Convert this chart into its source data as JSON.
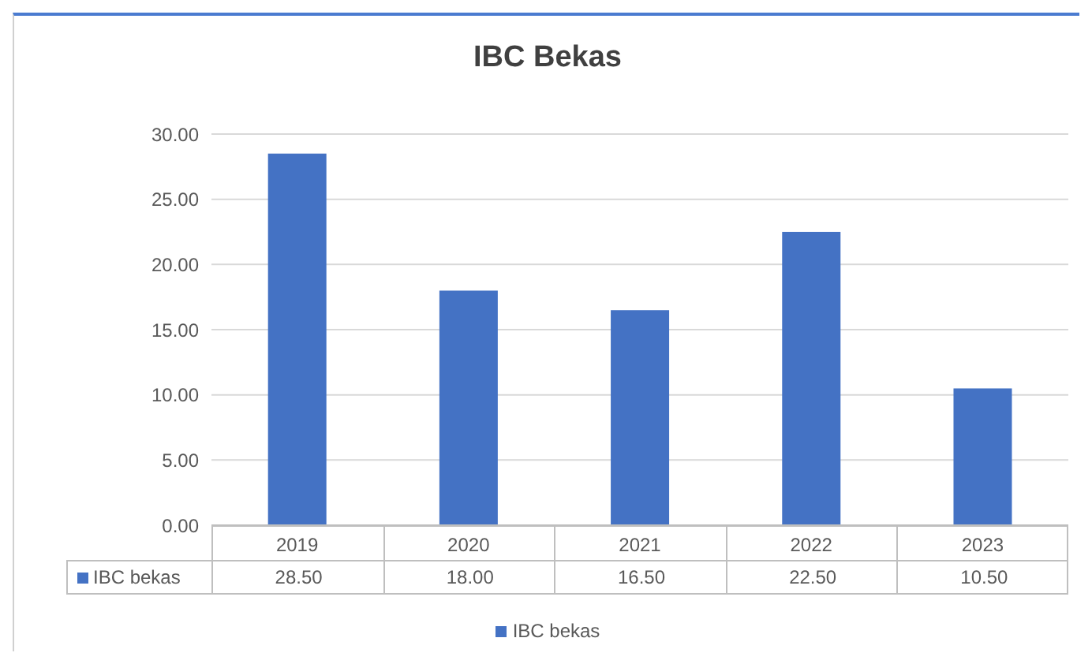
{
  "chart_data": {
    "type": "bar",
    "title": "IBC Bekas",
    "categories": [
      "2019",
      "2020",
      "2021",
      "2022",
      "2023"
    ],
    "series": [
      {
        "name": "IBC bekas",
        "color": "#4472c4",
        "values": [
          28.5,
          18,
          16.5,
          22.5,
          10.5
        ],
        "value_labels": [
          "28.50",
          "18.00",
          "16.50",
          "22.50",
          "10.50"
        ]
      }
    ],
    "ylim": [
      0,
      30
    ],
    "yticks": [
      {
        "value": 0,
        "label": "0.00"
      },
      {
        "value": 5,
        "label": "5.00"
      },
      {
        "value": 10,
        "label": "10.00"
      },
      {
        "value": 15,
        "label": "15.00"
      },
      {
        "value": 20,
        "label": "20.00"
      },
      {
        "value": 25,
        "label": "25.00"
      },
      {
        "value": 30,
        "label": "30.00"
      }
    ],
    "grid": "y",
    "legend": "bottom"
  }
}
